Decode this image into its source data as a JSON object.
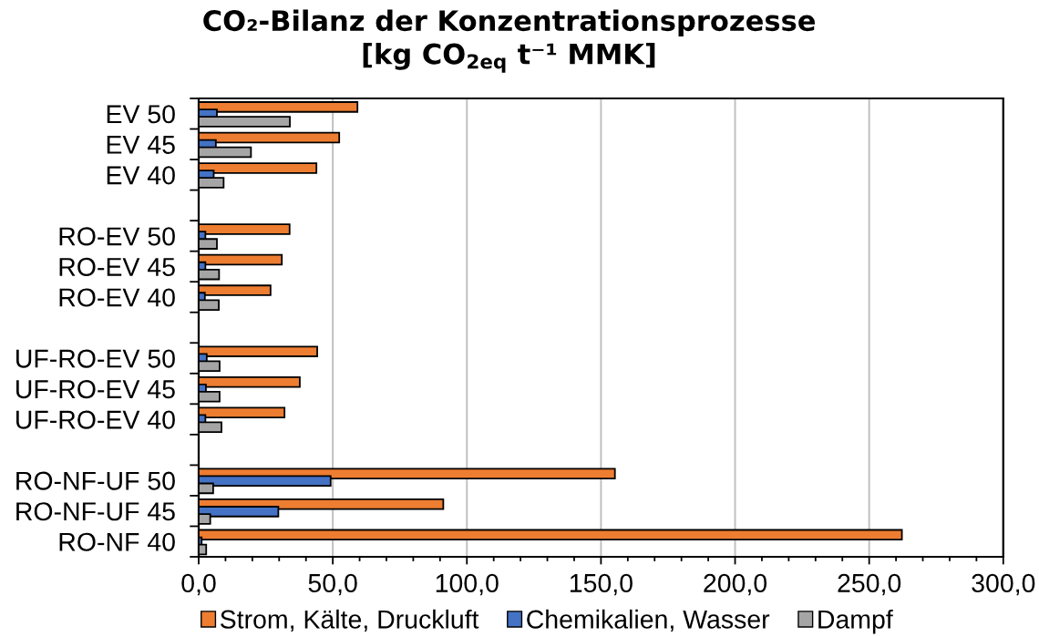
{
  "chart_data": {
    "type": "bar",
    "orientation": "horizontal",
    "title": "CO₂-Bilanz der Konzentrationsprozesse\n[kg CO$_{2eq}$ t⁻¹ MMK]",
    "categories": [
      "EV 50",
      "EV 45",
      "EV 40",
      null,
      "RO-EV 50",
      "RO-EV 45",
      "RO-EV 40",
      null,
      "UF-RO-EV 50",
      "UF-RO-EV 45",
      "UF-RO-EV 40",
      null,
      "RO-NF-UF 50",
      "RO-NF-UF 45",
      "RO-NF 40"
    ],
    "series": [
      {
        "name": "Strom, Kälte, Druckluft",
        "color": "#ed7d31",
        "values": [
          59.2,
          52.4,
          43.9,
          null,
          33.9,
          31.0,
          26.8,
          null,
          44.2,
          37.7,
          32.0,
          null,
          155.2,
          91.2,
          262.2
        ]
      },
      {
        "name": "Chemikalien, Wasser",
        "color": "#4472c4",
        "values": [
          6.8,
          6.4,
          5.6,
          null,
          2.5,
          2.5,
          2.3,
          null,
          3.0,
          2.7,
          2.5,
          null,
          49.2,
          29.7,
          1.1
        ]
      },
      {
        "name": "Dampf",
        "color": "#a5a5a5",
        "values": [
          34.0,
          19.5,
          9.3,
          null,
          6.8,
          7.6,
          7.5,
          null,
          7.8,
          7.8,
          8.5,
          null,
          5.4,
          4.3,
          2.8
        ]
      }
    ],
    "xlim": [
      0,
      300
    ],
    "xticks": [
      {
        "value": 0,
        "label": "0,0"
      },
      {
        "value": 50,
        "label": "50,0"
      },
      {
        "value": 100,
        "label": "100,0"
      },
      {
        "value": 150,
        "label": "150,0"
      },
      {
        "value": 200,
        "label": "200,0"
      },
      {
        "value": 250,
        "label": "250,0"
      },
      {
        "value": 300,
        "label": "300,0"
      }
    ],
    "grid": "x",
    "legend": "bottom"
  }
}
